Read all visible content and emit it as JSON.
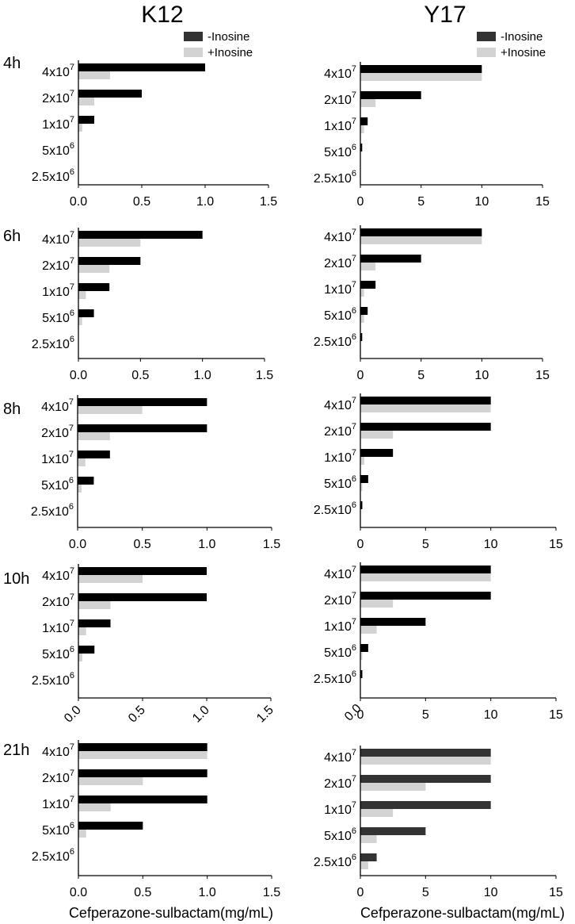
{
  "col_titles": [
    "K12",
    "Y17"
  ],
  "row_labels": [
    "4h",
    "6h",
    "8h",
    "10h",
    "21h"
  ],
  "legend": {
    "minus_label": "-Inosine",
    "plus_label": "+Inosine",
    "minus_color": "#333333",
    "plus_color": "#d3d3d3"
  },
  "xlabel": "Cefperazone-sulbactam(mg/mL)",
  "category_labels": [
    {
      "base": "4x10",
      "exp": "7"
    },
    {
      "base": "2x10",
      "exp": "7"
    },
    {
      "base": "1x10",
      "exp": "7"
    },
    {
      "base": "5x10",
      "exp": "6"
    },
    {
      "base": "2.5x10",
      "exp": "6"
    }
  ],
  "colors": {
    "bar_minus_dark": "#000000",
    "bar_minus": "#333333",
    "bar_plus": "#d3d3d3",
    "axis": "#000000"
  },
  "chart_data": [
    {
      "type": "bar",
      "orientation": "horizontal",
      "strain": "K12",
      "time": "4h",
      "categories": [
        "4x10^7",
        "2x10^7",
        "1x10^7",
        "5x10^6",
        "2.5x10^6"
      ],
      "xlim": [
        0,
        1.5
      ],
      "xticks": [
        "0.0",
        "0.5",
        "1.0",
        "1.5"
      ],
      "tick_rotation": 0,
      "series": [
        {
          "name": "-Inosine",
          "values": [
            1.0,
            0.5,
            0.125,
            0,
            0
          ]
        },
        {
          "name": "+Inosine",
          "values": [
            0.25,
            0.125,
            0.03,
            0,
            0
          ]
        }
      ]
    },
    {
      "type": "bar",
      "orientation": "horizontal",
      "strain": "Y17",
      "time": "4h",
      "categories": [
        "4x10^7",
        "2x10^7",
        "1x10^7",
        "5x10^6",
        "2.5x10^6"
      ],
      "xlim": [
        0,
        15
      ],
      "xticks": [
        "0",
        "5",
        "10",
        "15"
      ],
      "tick_rotation": 0,
      "series": [
        {
          "name": "-Inosine",
          "values": [
            10,
            5,
            0.6,
            0.15,
            0
          ]
        },
        {
          "name": "+Inosine",
          "values": [
            10,
            1.25,
            0.3,
            0,
            0
          ]
        }
      ]
    },
    {
      "type": "bar",
      "orientation": "horizontal",
      "strain": "K12",
      "time": "6h",
      "categories": [
        "4x10^7",
        "2x10^7",
        "1x10^7",
        "5x10^6",
        "2.5x10^6"
      ],
      "xlim": [
        0,
        1.5
      ],
      "xticks": [
        "0.0",
        "0.5",
        "1.0",
        "1.5"
      ],
      "tick_rotation": 0,
      "series": [
        {
          "name": "-Inosine",
          "values": [
            1.0,
            0.5,
            0.25,
            0.125,
            0
          ]
        },
        {
          "name": "+Inosine",
          "values": [
            0.5,
            0.25,
            0.06,
            0.03,
            0
          ]
        }
      ]
    },
    {
      "type": "bar",
      "orientation": "horizontal",
      "strain": "Y17",
      "time": "6h",
      "categories": [
        "4x10^7",
        "2x10^7",
        "1x10^7",
        "5x10^6",
        "2.5x10^6"
      ],
      "xlim": [
        0,
        15
      ],
      "xticks": [
        "0",
        "5",
        "10",
        "15"
      ],
      "tick_rotation": 0,
      "series": [
        {
          "name": "-Inosine",
          "values": [
            10,
            5,
            1.25,
            0.6,
            0.15
          ]
        },
        {
          "name": "+Inosine",
          "values": [
            10,
            1.25,
            0.3,
            0.3,
            0
          ]
        }
      ]
    },
    {
      "type": "bar",
      "orientation": "horizontal",
      "strain": "K12",
      "time": "8h",
      "categories": [
        "4x10^7",
        "2x10^7",
        "1x10^7",
        "5x10^6",
        "2.5x10^6"
      ],
      "xlim": [
        0,
        1.5
      ],
      "xticks": [
        "0.0",
        "0.5",
        "1.0",
        "1.5"
      ],
      "tick_rotation": 0,
      "series": [
        {
          "name": "-Inosine",
          "values": [
            1.0,
            1.0,
            0.25,
            0.125,
            0
          ]
        },
        {
          "name": "+Inosine",
          "values": [
            0.5,
            0.25,
            0.06,
            0.03,
            0
          ]
        }
      ]
    },
    {
      "type": "bar",
      "orientation": "horizontal",
      "strain": "Y17",
      "time": "8h",
      "categories": [
        "4x10^7",
        "2x10^7",
        "1x10^7",
        "5x10^6",
        "2.5x10^6"
      ],
      "xlim": [
        0,
        15
      ],
      "xticks": [
        "0",
        "5",
        "10",
        "15"
      ],
      "tick_rotation": 0,
      "series": [
        {
          "name": "-Inosine",
          "values": [
            10,
            10,
            2.5,
            0.6,
            0.15
          ]
        },
        {
          "name": "+Inosine",
          "values": [
            10,
            2.5,
            0.3,
            0.15,
            0
          ]
        }
      ]
    },
    {
      "type": "bar",
      "orientation": "horizontal",
      "strain": "K12",
      "time": "10h",
      "categories": [
        "4x10^7",
        "2x10^7",
        "1x10^7",
        "5x10^6",
        "2.5x10^6"
      ],
      "xlim": [
        0,
        1.5
      ],
      "xticks": [
        "0.0",
        "0.5",
        "1.0",
        "1.5"
      ],
      "tick_rotation": -45,
      "series": [
        {
          "name": "-Inosine",
          "values": [
            1.0,
            1.0,
            0.25,
            0.125,
            0
          ]
        },
        {
          "name": "+Inosine",
          "values": [
            0.5,
            0.25,
            0.06,
            0.03,
            0
          ]
        }
      ]
    },
    {
      "type": "bar",
      "orientation": "horizontal",
      "strain": "Y17",
      "time": "10h",
      "categories": [
        "4x10^7",
        "2x10^7",
        "1x10^7",
        "5x10^6",
        "2.5x10^6"
      ],
      "xlim": [
        0,
        15
      ],
      "xticks": [
        "0.0",
        "0",
        "5",
        "10",
        "15"
      ],
      "tick_rotation": 0,
      "series": [
        {
          "name": "-Inosine",
          "values": [
            10,
            10,
            5,
            0.6,
            0.15
          ]
        },
        {
          "name": "+Inosine",
          "values": [
            10,
            2.5,
            1.25,
            0.15,
            0
          ]
        }
      ]
    },
    {
      "type": "bar",
      "orientation": "horizontal",
      "strain": "K12",
      "time": "21h",
      "categories": [
        "4x10^7",
        "2x10^7",
        "1x10^7",
        "5x10^6",
        "2.5x10^6"
      ],
      "xlim": [
        0,
        1.5
      ],
      "xticks": [
        "0.0",
        "0.5",
        "1.0",
        "1.5"
      ],
      "tick_rotation": 0,
      "series": [
        {
          "name": "-Inosine",
          "values": [
            1.0,
            1.0,
            1.0,
            0.5,
            0
          ]
        },
        {
          "name": "+Inosine",
          "values": [
            1.0,
            0.5,
            0.25,
            0.06,
            0
          ]
        }
      ]
    },
    {
      "type": "bar",
      "orientation": "horizontal",
      "strain": "Y17",
      "time": "21h",
      "categories": [
        "4x10^7",
        "2x10^7",
        "1x10^7",
        "5x10^6",
        "2.5x10^6"
      ],
      "xlim": [
        0,
        15
      ],
      "xticks": [
        "0",
        "5",
        "10",
        "15"
      ],
      "tick_rotation": 0,
      "series": [
        {
          "name": "-Inosine",
          "values": [
            10,
            10,
            10,
            5,
            1.25
          ]
        },
        {
          "name": "+Inosine",
          "values": [
            10,
            5,
            2.5,
            1.25,
            0.6
          ]
        }
      ]
    }
  ]
}
